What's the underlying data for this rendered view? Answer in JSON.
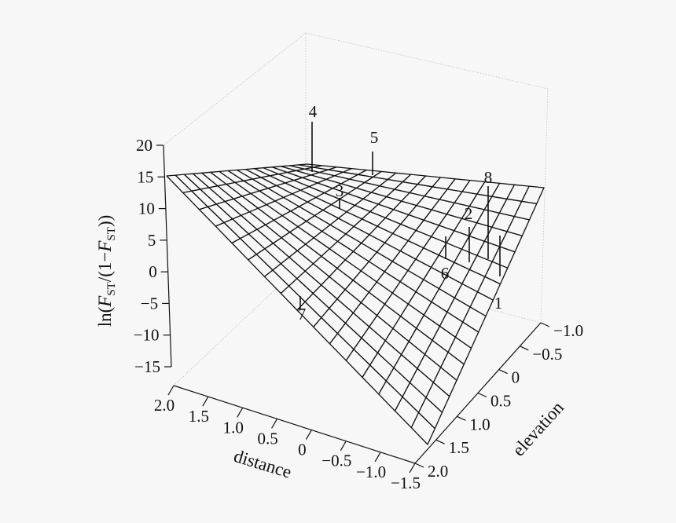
{
  "chart_data": {
    "type": "surface3d",
    "title": "",
    "zlabel": {
      "main": "ln(",
      "F1": "F",
      "sub1": "ST",
      "mid": "/(1−",
      "F2": "F",
      "sub2": "ST",
      "end": "))"
    },
    "xlabel": "elevation",
    "ylabel": "distance",
    "x_ticks": [
      "−1.0",
      "−0.5",
      "0",
      "0.5",
      "1.0",
      "1.5",
      "2.0"
    ],
    "y_ticks": [
      "2.0",
      "1.5",
      "1.0",
      "0.5",
      "0",
      "−0.5",
      "−1.0",
      "−1.5"
    ],
    "z_ticks": [
      "20",
      "15",
      "10",
      "5",
      "0",
      "−5",
      "−10",
      "−15"
    ],
    "grid": true,
    "points": [
      {
        "label": "1"
      },
      {
        "label": "2"
      },
      {
        "label": "3"
      },
      {
        "label": "4"
      },
      {
        "label": "5"
      },
      {
        "label": "6"
      },
      {
        "label": "7"
      },
      {
        "label": "8"
      }
    ]
  }
}
